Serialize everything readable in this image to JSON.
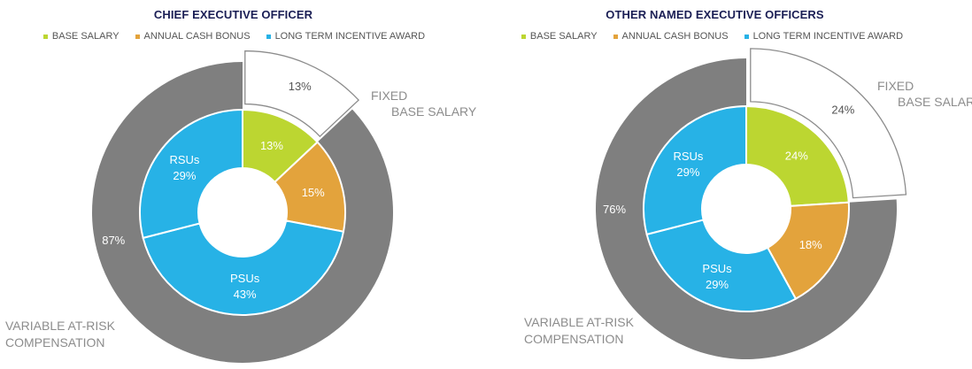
{
  "colors": {
    "base_salary": "#bcd631",
    "annual_cash_bonus": "#e3a33c",
    "long_term_incentive": "#27b2e6",
    "variable": "#7f7f7f",
    "fixed_outline": "#8c8c8c",
    "title": "#1b1f55"
  },
  "legend": {
    "base_salary": "BASE SALARY",
    "annual_cash_bonus": "ANNUAL CASH BONUS",
    "long_term_incentive": "LONG TERM INCENTIVE AWARD"
  },
  "chart_data": [
    {
      "type": "pie",
      "title": "CHIEF EXECUTIVE OFFICER",
      "outer_ring": [
        {
          "key": "fixed",
          "label_lines": [
            "FIXED",
            "BASE SALARY"
          ],
          "value": 13,
          "value_label": "13%"
        },
        {
          "key": "variable",
          "label_lines": [
            "VARIABLE AT-RISK",
            "COMPENSATION"
          ],
          "value": 87,
          "value_label": "87%"
        }
      ],
      "inner_ring": [
        {
          "key": "base_salary",
          "label": "",
          "value": 13,
          "value_label": "13%"
        },
        {
          "key": "annual_cash_bonus",
          "label": "",
          "value": 15,
          "value_label": "15%"
        },
        {
          "key": "psus",
          "label": "PSUs",
          "value": 43,
          "value_label": "43%"
        },
        {
          "key": "rsus",
          "label": "RSUs",
          "value": 29,
          "value_label": "29%"
        }
      ]
    },
    {
      "type": "pie",
      "title": "OTHER NAMED EXECUTIVE OFFICERS",
      "outer_ring": [
        {
          "key": "fixed",
          "label_lines": [
            "FIXED",
            "BASE SALARY"
          ],
          "value": 24,
          "value_label": "24%"
        },
        {
          "key": "variable",
          "label_lines": [
            "VARIABLE AT-RISK",
            "COMPENSATION"
          ],
          "value": 76,
          "value_label": "76%"
        }
      ],
      "inner_ring": [
        {
          "key": "base_salary",
          "label": "",
          "value": 24,
          "value_label": "24%"
        },
        {
          "key": "annual_cash_bonus",
          "label": "",
          "value": 18,
          "value_label": "18%"
        },
        {
          "key": "psus",
          "label": "PSUs",
          "value": 29,
          "value_label": "29%"
        },
        {
          "key": "rsus",
          "label": "RSUs",
          "value": 29,
          "value_label": "29%"
        }
      ]
    }
  ]
}
